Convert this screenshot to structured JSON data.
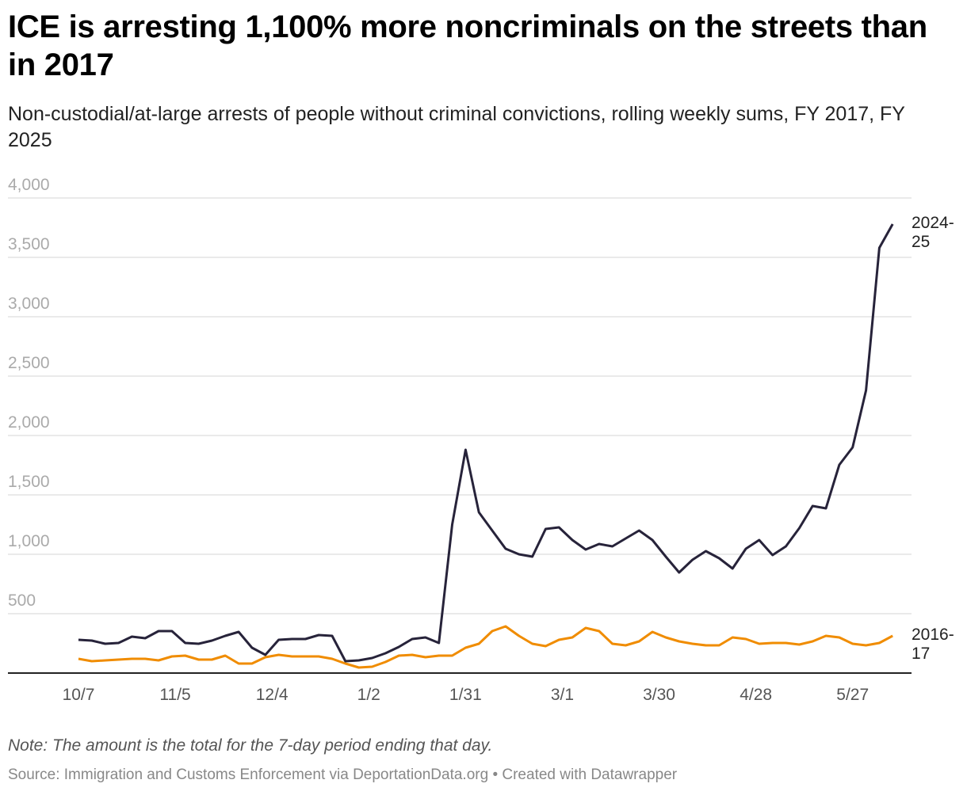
{
  "title": "ICE is arresting 1,100% more noncriminals on the streets than in 2017",
  "subtitle": "Non-custodial/at-large arrests of people without criminal convictions, rolling weekly sums, FY 2017, FY 2025",
  "note": "Note: The amount is the total for the 7-day period ending that day.",
  "source": "Source: Immigration and Customs Enforcement via DeportationData.org • Created with Datawrapper",
  "chart_data": {
    "type": "line",
    "title": "ICE is arresting 1,100% more noncriminals on the streets than in 2017",
    "xlabel": "",
    "ylabel": "",
    "ylim": [
      0,
      4000
    ],
    "yticks": [
      "4,000",
      "3,500",
      "3,000",
      "2,500",
      "2,000",
      "1,500",
      "1,000",
      "500"
    ],
    "ytick_values": [
      4000,
      3500,
      3000,
      2500,
      2000,
      1500,
      1000,
      500
    ],
    "xticks": [
      "10/7",
      "11/5",
      "12/4",
      "1/2",
      "1/31",
      "3/1",
      "3/30",
      "4/28",
      "5/27"
    ],
    "grid": true,
    "x": [
      "10/7",
      "10/11",
      "10/15",
      "10/19",
      "10/23",
      "10/27",
      "10/31",
      "11/4",
      "11/8",
      "11/12",
      "11/16",
      "11/20",
      "11/24",
      "11/28",
      "12/2",
      "12/6",
      "12/10",
      "12/14",
      "12/18",
      "12/22",
      "12/26",
      "12/30",
      "1/3",
      "1/7",
      "1/11",
      "1/15",
      "1/19",
      "1/23",
      "1/27",
      "1/31",
      "2/4",
      "2/8",
      "2/12",
      "2/16",
      "2/20",
      "2/24",
      "2/28",
      "3/4",
      "3/8",
      "3/12",
      "3/16",
      "3/20",
      "3/24",
      "3/28",
      "4/1",
      "4/5",
      "4/9",
      "4/13",
      "4/17",
      "4/21",
      "4/25",
      "4/29",
      "5/3",
      "5/7",
      "5/11",
      "5/15",
      "5/19",
      "5/23",
      "5/27",
      "5/31",
      "6/4",
      "6/8"
    ],
    "series": [
      {
        "name": "2024-25",
        "color": "#27233a",
        "values": [
          280,
          273,
          247,
          253,
          307,
          293,
          353,
          353,
          253,
          247,
          273,
          313,
          347,
          213,
          153,
          280,
          287,
          287,
          320,
          313,
          100,
          107,
          127,
          167,
          220,
          287,
          300,
          253,
          1250,
          1880,
          1353,
          1200,
          1047,
          1000,
          980,
          1213,
          1227,
          1120,
          1040,
          1087,
          1067,
          1133,
          1200,
          1120,
          980,
          847,
          953,
          1027,
          967,
          880,
          1047,
          1120,
          993,
          1067,
          1220,
          1407,
          1387,
          1753,
          1900,
          2380,
          3580,
          3780
        ]
      },
      {
        "name": "2016-17",
        "color": "#f08c00",
        "values": [
          120,
          100,
          107,
          113,
          120,
          120,
          107,
          140,
          147,
          113,
          113,
          147,
          80,
          80,
          133,
          153,
          140,
          140,
          140,
          120,
          80,
          47,
          53,
          93,
          147,
          153,
          133,
          147,
          147,
          213,
          247,
          353,
          393,
          313,
          247,
          227,
          280,
          300,
          380,
          353,
          247,
          233,
          267,
          347,
          300,
          267,
          247,
          233,
          233,
          300,
          287,
          247,
          253,
          253,
          240,
          267,
          313,
          300,
          247,
          233,
          253,
          313
        ]
      }
    ]
  }
}
